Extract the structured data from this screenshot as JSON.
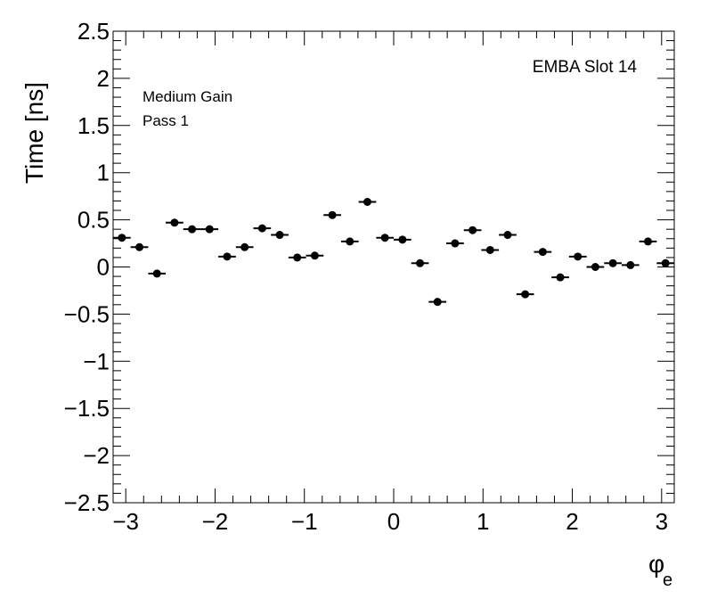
{
  "chart_data": {
    "type": "scatter",
    "ylabel": "Time [ns]",
    "xlabel": "φ",
    "xlabel_sub": "e",
    "annotations": {
      "slot_label": "EMBA Slot 14",
      "gain_label": "Medium Gain",
      "pass_label": "Pass 1"
    },
    "xlim": [
      -3.14159,
      3.14159
    ],
    "ylim": [
      -2.5,
      2.5
    ],
    "x_ticks": [
      -3,
      -2,
      -1,
      0,
      1,
      2,
      3
    ],
    "x_tick_labels": [
      "−3",
      "−2",
      "−1",
      "0",
      "1",
      "2",
      "3"
    ],
    "y_ticks": [
      -2.5,
      -2,
      -1.5,
      -1,
      -0.5,
      0,
      0.5,
      1,
      1.5,
      2,
      2.5
    ],
    "y_tick_labels": [
      "−2.5",
      "−2",
      "−1.5",
      "−1",
      "−0.5",
      "0",
      "0.5",
      "1",
      "1.5",
      "2",
      "2.5"
    ],
    "bin_width": 0.19635,
    "series": [
      {
        "x": [
          -3.0434,
          -2.8471,
          -2.6507,
          -2.4544,
          -2.258,
          -2.0617,
          -1.8653,
          -1.669,
          -1.4726,
          -1.2763,
          -1.0799,
          -0.8836,
          -0.6872,
          -0.4909,
          -0.2945,
          -0.0982,
          0.0982,
          0.2945,
          0.4909,
          0.6872,
          0.8836,
          1.0799,
          1.2763,
          1.4726,
          1.669,
          1.8653,
          2.0617,
          2.258,
          2.4544,
          2.6507,
          2.8471,
          3.0434
        ],
        "y": [
          0.31,
          0.21,
          -0.07,
          0.47,
          0.4,
          0.4,
          0.11,
          0.21,
          0.41,
          0.34,
          0.1,
          0.12,
          0.55,
          0.27,
          0.69,
          0.31,
          0.29,
          0.04,
          -0.37,
          0.25,
          0.39,
          0.18,
          0.34,
          -0.29,
          0.16,
          -0.11,
          0.11,
          0.0,
          0.04,
          0.02,
          0.27,
          0.04
        ]
      }
    ]
  }
}
